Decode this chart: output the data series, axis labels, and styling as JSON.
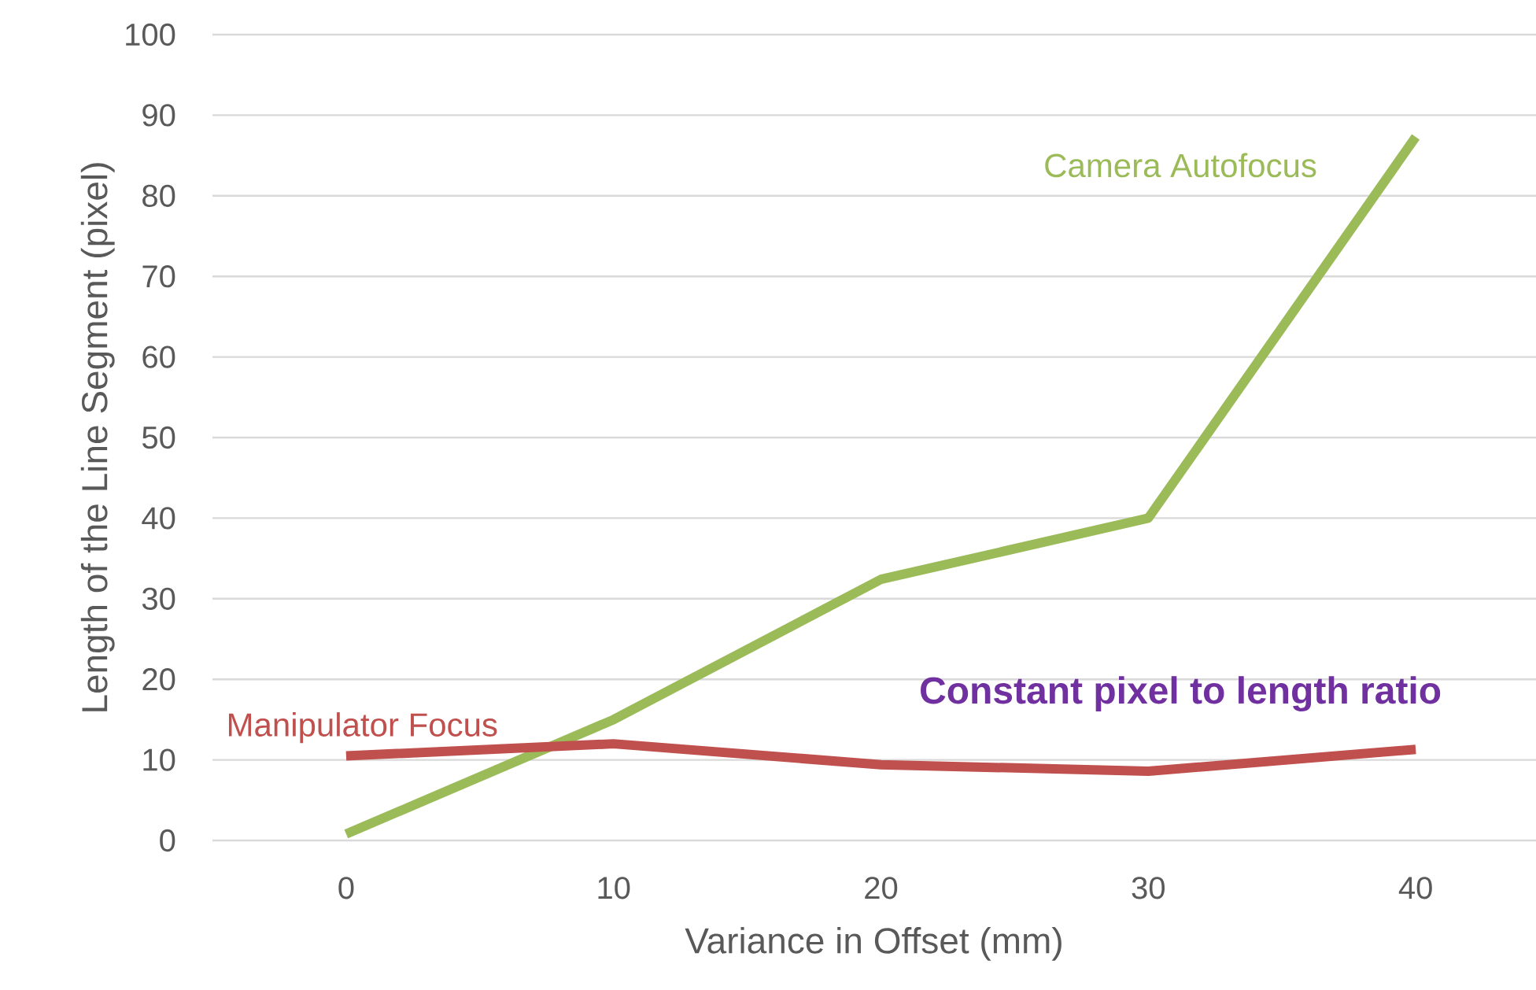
{
  "chart_data": {
    "type": "line",
    "xlabel": "Variance in Offset (mm)",
    "ylabel": "Length of the Line Segment  (pixel)",
    "categories": [
      "0",
      "10",
      "20",
      "30",
      "40"
    ],
    "series": [
      {
        "name": "Camera Autofocus",
        "color": "#9bbb59",
        "values": [
          0.8,
          15,
          32.4,
          40,
          87.3
        ]
      },
      {
        "name": "Manipulator Focus",
        "color": "#c0504d",
        "values": [
          10.5,
          12,
          9.4,
          8.6,
          11.3
        ]
      }
    ],
    "annotations": [
      "Constant pixel to length ratio"
    ],
    "ylim": [
      0,
      100
    ],
    "yticks": [
      0,
      10,
      20,
      30,
      40,
      50,
      60,
      70,
      80,
      90,
      100
    ],
    "grid": "y"
  }
}
